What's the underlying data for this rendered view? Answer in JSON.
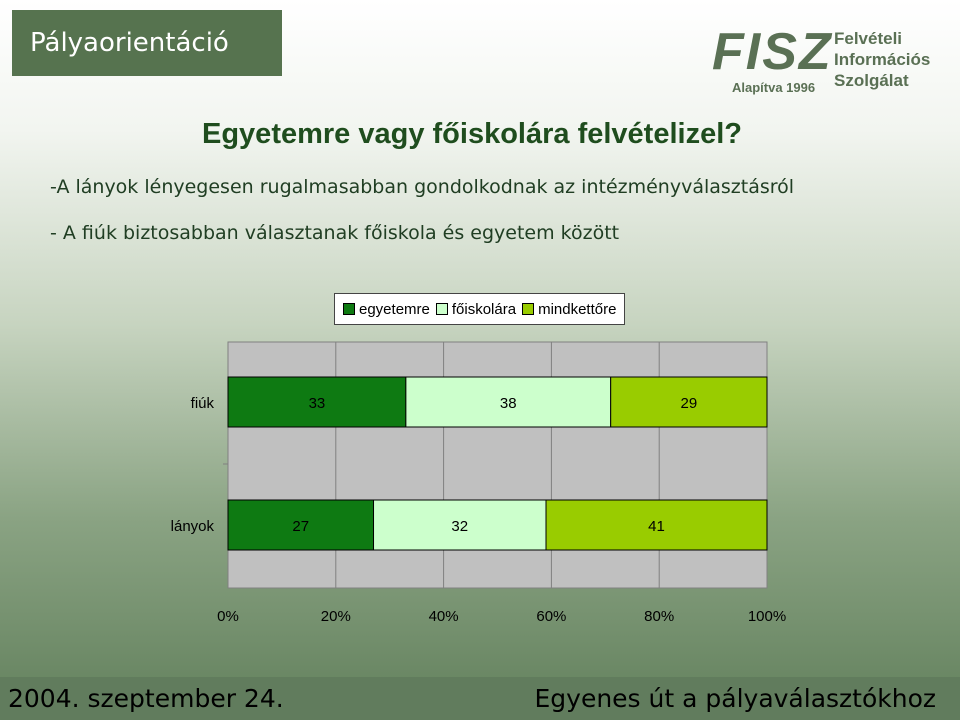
{
  "slide": {
    "title": "Pályaorientáció",
    "logo": {
      "mark": "FISZ",
      "since": "Alapítva 1996",
      "name_lines": [
        "Felvételi",
        "Információs",
        "Szolgálat"
      ]
    },
    "heading": "Egyetemre vagy főiskolára felvételizel?",
    "bullets": [
      "-A lányok lényegesen rugalmasabban gondolkodnak az intézményválasztásról",
      "- A fiúk biztosabban választanak főiskola és egyetem között"
    ],
    "footer_left": "2004. szeptember 24.",
    "footer_right": "Egyenes út a pályaválasztókhoz"
  },
  "colors": {
    "egyetemre": "#0e7a12",
    "foiskolara": "#ccffcc",
    "mindkettore": "#99cc00",
    "plot_background": "#c0c0c0",
    "accent": "#56734f"
  },
  "chart_data": {
    "type": "bar",
    "orientation": "horizontal",
    "stacked": "100%",
    "categories": [
      "fiúk",
      "lányok"
    ],
    "series": [
      {
        "name": "egyetemre",
        "values": [
          33,
          27
        ]
      },
      {
        "name": "főiskolára",
        "values": [
          38,
          32
        ]
      },
      {
        "name": "mindkettőre",
        "values": [
          29,
          41
        ]
      }
    ],
    "x_ticks": [
      "0%",
      "20%",
      "40%",
      "60%",
      "80%",
      "100%"
    ],
    "xlim": [
      0,
      100
    ],
    "legend": "top",
    "grid": true
  }
}
